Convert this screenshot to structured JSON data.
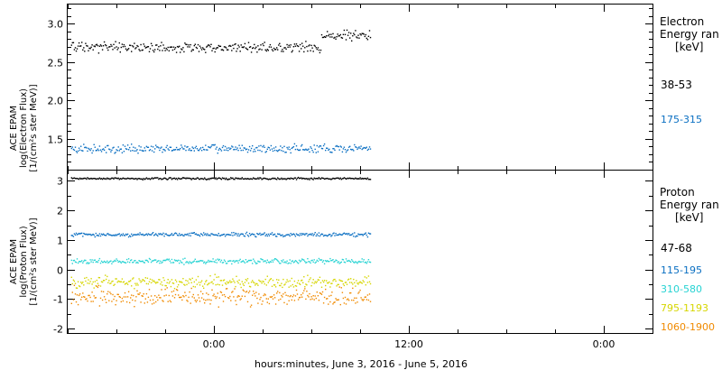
{
  "chart_data": [
    {
      "type": "scatter",
      "panel": "electron",
      "ylabel": [
        "ACE EPAM",
        "log(Electron Flux)",
        "[1/(cm²s ster MeV)]"
      ],
      "ylim": [
        1.1,
        3.25
      ],
      "yticks": [
        "1.5",
        "2.0",
        "2.5",
        "3.0"
      ],
      "legend_title": [
        "Electron",
        "Energy ran",
        "[keV]"
      ],
      "series": [
        {
          "name": "38-53",
          "color": "#000000",
          "level": 2.7,
          "spread": 0.06
        },
        {
          "name": "175-315",
          "color": "#0a6fc2",
          "level": 1.38,
          "spread": 0.05
        }
      ]
    },
    {
      "type": "scatter",
      "panel": "proton",
      "ylabel": [
        "ACE EPAM",
        "log(Proton Flux)",
        "[1/(cm²s ster MeV)]"
      ],
      "ylim": [
        -2.15,
        3.35
      ],
      "yticks": [
        "-2",
        "-1",
        "0",
        "1",
        "2",
        "3"
      ],
      "legend_title": [
        "Proton",
        "Energy ran",
        "[keV]"
      ],
      "series": [
        {
          "name": "47-68",
          "color": "#000000",
          "level": 3.1,
          "spread": 0.03
        },
        {
          "name": "115-195",
          "color": "#0a6fc2",
          "level": 1.2,
          "spread": 0.06
        },
        {
          "name": "310-580",
          "color": "#27d3d3",
          "level": 0.3,
          "spread": 0.08
        },
        {
          "name": "795-1193",
          "color": "#d6d600",
          "level": -0.4,
          "spread": 0.18
        },
        {
          "name": "1060-1900",
          "color": "#f08a00",
          "level": -0.9,
          "spread": 0.28
        }
      ]
    }
  ],
  "x_axis": {
    "label": "hours:minutes, June  3, 2016 - June  5, 2016",
    "ticks": [
      {
        "label": "0:00",
        "hour": 24
      },
      {
        "label": "12:00",
        "hour": 36
      },
      {
        "label": "0:00",
        "hour": 48
      }
    ],
    "range_hours": [
      15,
      51
    ],
    "data_end_hour": 33.6
  }
}
